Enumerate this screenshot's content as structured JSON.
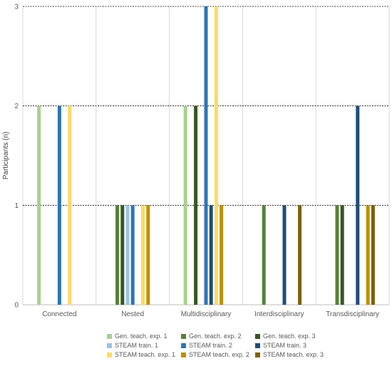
{
  "chart_data": {
    "type": "bar",
    "categories": [
      "Connected",
      "Nested",
      "Multidisciplinary",
      "Interdisciplinary",
      "Transdisciplinary"
    ],
    "ylabel": "Participants (n)",
    "xlabel": "",
    "ylim": [
      0,
      3
    ],
    "yticks": [
      "0",
      "1",
      "2",
      "3"
    ],
    "grid": true,
    "legend_position": "bottom",
    "series": [
      {
        "name": "Gen. teach. exp. 1",
        "color": "#a9d18e",
        "values": [
          2,
          0,
          2,
          0,
          0
        ]
      },
      {
        "name": "Gen. teach. exp. 2",
        "color": "#548235",
        "values": [
          0,
          1,
          0,
          1,
          1
        ]
      },
      {
        "name": "Gen. teach. exp. 3",
        "color": "#375623",
        "values": [
          0,
          1,
          2,
          0,
          1
        ]
      },
      {
        "name": "STEAM train. 1",
        "color": "#9dc3e6",
        "values": [
          0,
          1,
          0,
          0,
          0
        ]
      },
      {
        "name": "STEAM train. 2",
        "color": "#2e75b6",
        "values": [
          2,
          1,
          3,
          0,
          0
        ]
      },
      {
        "name": "STEAM train. 3",
        "color": "#1f4e79",
        "values": [
          0,
          0,
          1,
          1,
          2
        ]
      },
      {
        "name": "STEAM teach. exp. 1",
        "color": "#ffd966",
        "values": [
          2,
          1,
          3,
          0,
          0
        ]
      },
      {
        "name": "STEAM teach. exp. 2",
        "color": "#bf9000",
        "values": [
          0,
          1,
          1,
          0,
          1
        ]
      },
      {
        "name": "STEAM teach. exp. 3",
        "color": "#7f6000",
        "values": [
          0,
          0,
          0,
          1,
          1
        ]
      }
    ]
  }
}
